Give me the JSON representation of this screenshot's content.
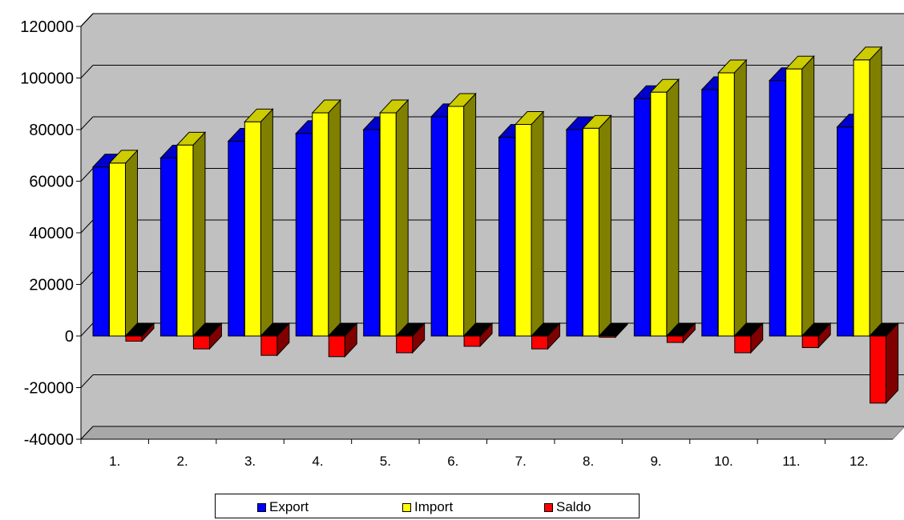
{
  "chart_data": {
    "type": "bar",
    "categories": [
      "1.",
      "2.",
      "3.",
      "4.",
      "5.",
      "6.",
      "7.",
      "8.",
      "9.",
      "10.",
      "11.",
      "12."
    ],
    "series": [
      {
        "name": "Export",
        "color": "#0000ff",
        "values": [
          65500,
          69000,
          75500,
          78500,
          80000,
          85000,
          77000,
          80000,
          92000,
          95500,
          99000,
          81000
        ]
      },
      {
        "name": "Import",
        "color": "#ffff00",
        "values": [
          67000,
          74000,
          83000,
          86500,
          86500,
          89000,
          82000,
          80500,
          94500,
          102000,
          103500,
          107000
        ]
      },
      {
        "name": "Saldo",
        "color": "#ff0000",
        "values": [
          -2000,
          -5000,
          -7500,
          -8000,
          -6500,
          -4000,
          -5000,
          -500,
          -2500,
          -6500,
          -4500,
          -26000
        ]
      }
    ],
    "yticks": [
      "120000",
      "100000",
      "80000",
      "60000",
      "40000",
      "20000",
      "0",
      "-20000",
      "-40000"
    ],
    "ylim": [
      -40000,
      120000
    ],
    "grid": true,
    "legend_position": "bottom",
    "style": "3d-column",
    "wall_color": "#c0c0c0"
  }
}
